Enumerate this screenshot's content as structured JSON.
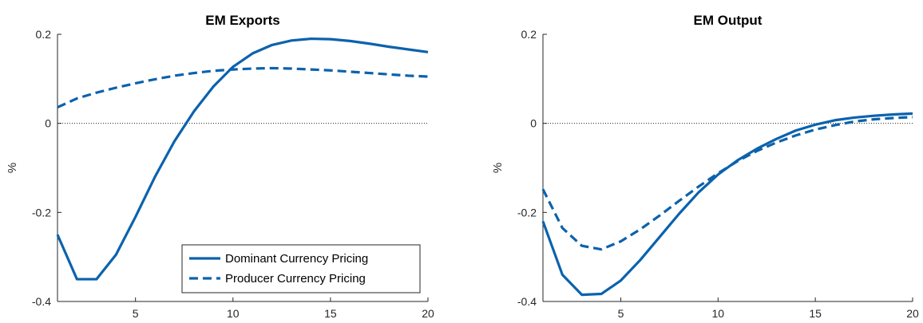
{
  "colors": {
    "series": "#0b62ad",
    "axis": "#262626"
  },
  "chart_data": [
    {
      "type": "line",
      "title": "EM Exports",
      "xlabel": "",
      "ylabel": "%",
      "xlim": [
        1,
        20
      ],
      "ylim": [
        -0.4,
        0.2
      ],
      "xticks": [
        5,
        10,
        15,
        20
      ],
      "yticks": [
        -0.4,
        -0.2,
        0,
        0.2
      ],
      "yticklabels": [
        "-0.4",
        "-0.2",
        "0",
        "0.2"
      ],
      "zero_line": true,
      "legend": {
        "placement": "bottom-right"
      },
      "x": [
        1,
        2,
        3,
        4,
        5,
        6,
        7,
        8,
        9,
        10,
        11,
        12,
        13,
        14,
        15,
        16,
        17,
        18,
        19,
        20
      ],
      "series": [
        {
          "name": "Dominant Currency Pricing",
          "style": "solid",
          "values": [
            -0.25,
            -0.35,
            -0.35,
            -0.295,
            -0.21,
            -0.12,
            -0.04,
            0.027,
            0.083,
            0.127,
            0.157,
            0.176,
            0.186,
            0.19,
            0.189,
            0.185,
            0.179,
            0.172,
            0.166,
            0.16
          ]
        },
        {
          "name": "Producer Currency Pricing",
          "style": "dashed",
          "values": [
            0.036,
            0.056,
            0.069,
            0.08,
            0.09,
            0.099,
            0.107,
            0.113,
            0.118,
            0.121,
            0.123,
            0.124,
            0.123,
            0.121,
            0.119,
            0.116,
            0.113,
            0.11,
            0.107,
            0.105
          ]
        }
      ]
    },
    {
      "type": "line",
      "title": "EM Output",
      "xlabel": "",
      "ylabel": "%",
      "xlim": [
        1,
        20
      ],
      "ylim": [
        -0.4,
        0.2
      ],
      "xticks": [
        5,
        10,
        15,
        20
      ],
      "yticks": [
        -0.4,
        -0.2,
        0,
        0.2
      ],
      "yticklabels": [
        "-0.4",
        "-0.2",
        "0",
        "0.2"
      ],
      "zero_line": true,
      "x": [
        1,
        2,
        3,
        4,
        5,
        6,
        7,
        8,
        9,
        10,
        11,
        12,
        13,
        14,
        15,
        16,
        17,
        18,
        19,
        20
      ],
      "series": [
        {
          "name": "Dominant Currency Pricing",
          "style": "solid",
          "values": [
            -0.22,
            -0.34,
            -0.385,
            -0.383,
            -0.353,
            -0.307,
            -0.255,
            -0.203,
            -0.155,
            -0.115,
            -0.083,
            -0.057,
            -0.035,
            -0.016,
            -0.003,
            0.007,
            0.013,
            0.017,
            0.02,
            0.022
          ]
        },
        {
          "name": "Producer Currency Pricing",
          "style": "dashed",
          "values": [
            -0.148,
            -0.235,
            -0.275,
            -0.283,
            -0.265,
            -0.238,
            -0.207,
            -0.174,
            -0.142,
            -0.112,
            -0.085,
            -0.062,
            -0.043,
            -0.027,
            -0.014,
            -0.004,
            0.004,
            0.009,
            0.012,
            0.014
          ]
        }
      ]
    }
  ]
}
